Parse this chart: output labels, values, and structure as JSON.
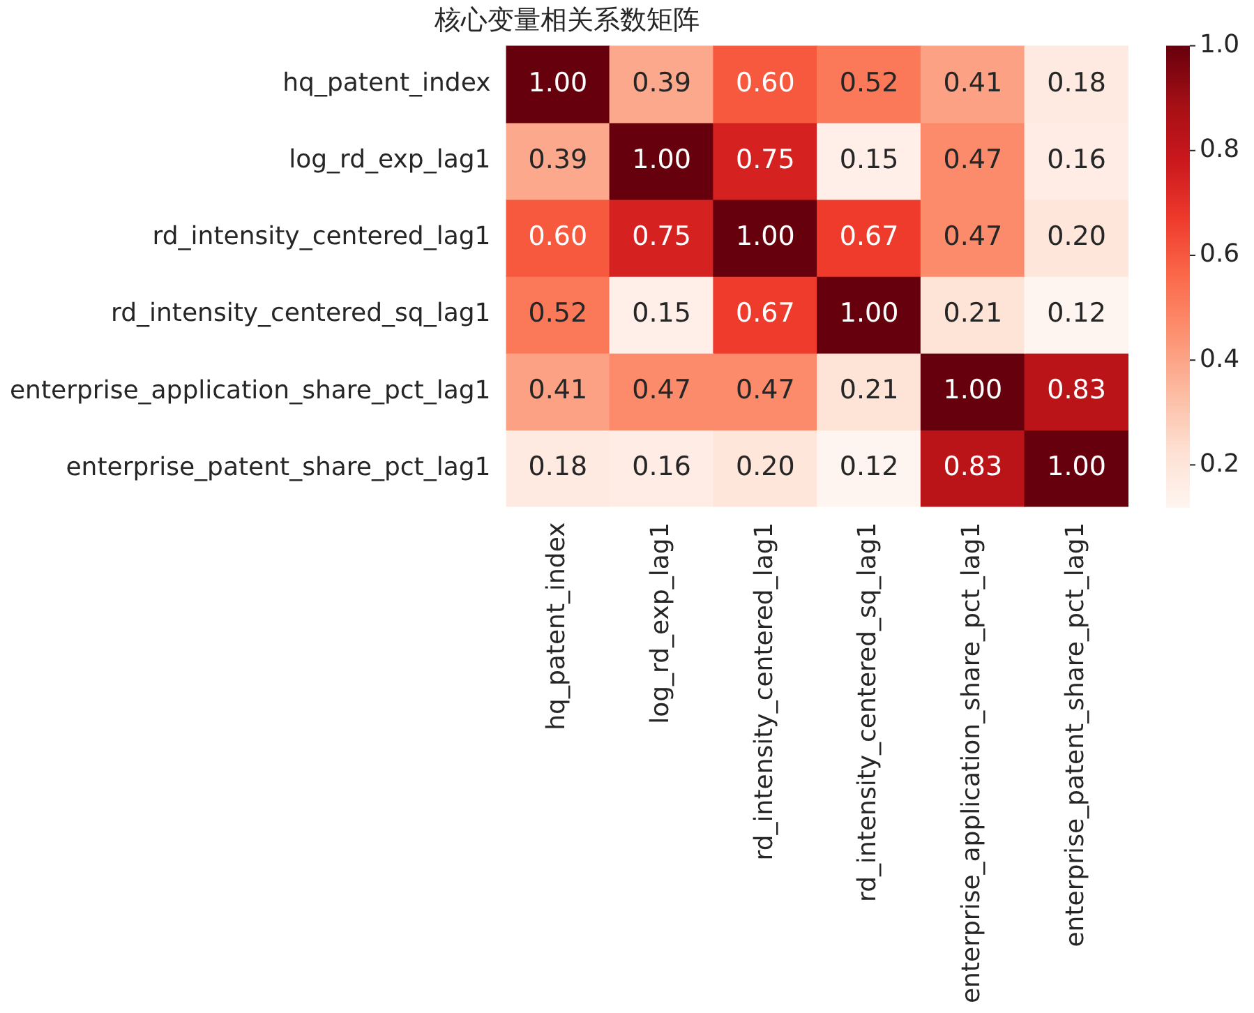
{
  "chart_data": {
    "type": "heatmap",
    "title": "核心变量相关系数矩阵",
    "categories": [
      "hq_patent_index",
      "log_rd_exp_lag1",
      "rd_intensity_centered_lag1",
      "rd_intensity_centered_sq_lag1",
      "enterprise_application_share_pct_lag1",
      "enterprise_patent_share_pct_lag1"
    ],
    "y_categories": [
      "hq_patent_index",
      "log_rd_exp_lag1",
      "rd_intensity_centered_lag1",
      "rd_intensity_centered_sq_lag1",
      "enterprise_application_share_pct_lag1",
      "enterprise_patent_share_pct_lag1"
    ],
    "cells": [
      [
        1.0,
        0.39,
        0.6,
        0.52,
        0.41,
        0.18
      ],
      [
        0.39,
        1.0,
        0.75,
        0.15,
        0.47,
        0.16
      ],
      [
        0.6,
        0.75,
        1.0,
        0.67,
        0.47,
        0.2
      ],
      [
        0.52,
        0.15,
        0.67,
        1.0,
        0.21,
        0.12
      ],
      [
        0.41,
        0.47,
        0.47,
        0.21,
        1.0,
        0.83
      ],
      [
        0.18,
        0.16,
        0.2,
        0.12,
        0.83,
        1.0
      ]
    ],
    "cell_labels": [
      [
        "1.00",
        "0.39",
        "0.60",
        "0.52",
        "0.41",
        "0.18"
      ],
      [
        "0.39",
        "1.00",
        "0.75",
        "0.15",
        "0.47",
        "0.16"
      ],
      [
        "0.60",
        "0.75",
        "1.00",
        "0.67",
        "0.47",
        "0.20"
      ],
      [
        "0.52",
        "0.15",
        "0.67",
        "1.00",
        "0.21",
        "0.12"
      ],
      [
        "0.41",
        "0.47",
        "0.47",
        "0.21",
        "1.00",
        "0.83"
      ],
      [
        "0.18",
        "0.16",
        "0.20",
        "0.12",
        "0.83",
        "1.00"
      ]
    ],
    "clim": [
      0.12,
      1.0
    ],
    "cticks": [
      0.2,
      0.4,
      0.6,
      0.8,
      {
        "value": 1.0,
        "label": "1.0"
      }
    ]
  }
}
